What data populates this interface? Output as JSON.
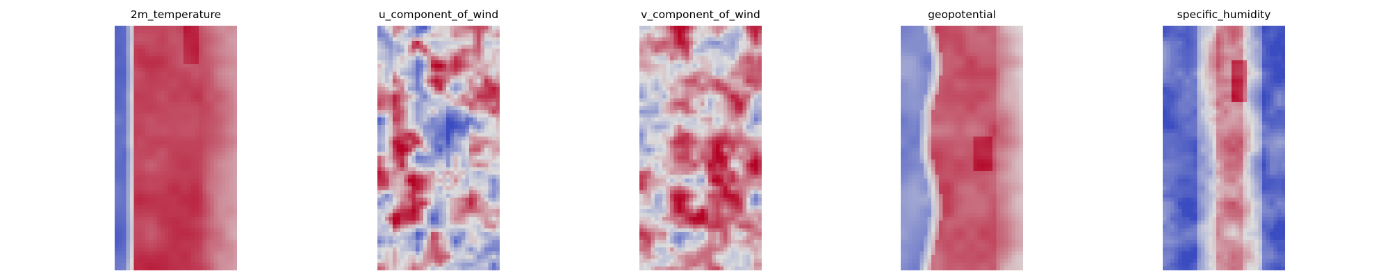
{
  "figure": {
    "panels": [
      {
        "title": "2m_temperature"
      },
      {
        "title": "u_component_of_wind"
      },
      {
        "title": "v_component_of_wind"
      },
      {
        "title": "geopotential"
      },
      {
        "title": "specific_humidity"
      }
    ]
  },
  "chart_data": [
    {
      "type": "heatmap",
      "title": "2m_temperature",
      "colormap": "coolwarm",
      "axes": "off",
      "grid": false,
      "colormap_stops": [
        "#3b4cc0",
        "#dddddd",
        "#b40426"
      ],
      "pattern": "cool blue band along the left edge, warm red band through center, lighter toward right edge",
      "value_range": [
        -1,
        1
      ]
    },
    {
      "type": "heatmap",
      "title": "u_component_of_wind",
      "colormap": "coolwarm",
      "axes": "off",
      "grid": false,
      "colormap_stops": [
        "#3b4cc0",
        "#dddddd",
        "#b40426"
      ],
      "pattern": "mixed blue and red patches, red streaks on left and center-top",
      "value_range": [
        -1,
        1
      ]
    },
    {
      "type": "heatmap",
      "title": "v_component_of_wind",
      "colormap": "coolwarm",
      "axes": "off",
      "grid": false,
      "colormap_stops": [
        "#3b4cc0",
        "#dddddd",
        "#b40426"
      ],
      "pattern": "mostly light salmon with scattered blue swirls and a few dark red spots",
      "value_range": [
        -1,
        1
      ]
    },
    {
      "type": "heatmap",
      "title": "geopotential",
      "colormap": "coolwarm",
      "axes": "off",
      "grid": false,
      "colormap_stops": [
        "#3b4cc0",
        "#dddddd",
        "#b40426"
      ],
      "pattern": "blue wavy band on left, broad red band center, light tones on right",
      "value_range": [
        -1,
        1
      ]
    },
    {
      "type": "heatmap",
      "title": "specific_humidity",
      "colormap": "coolwarm",
      "axes": "off",
      "grid": false,
      "colormap_stops": [
        "#3b4cc0",
        "#dddddd",
        "#b40426"
      ],
      "pattern": "deep blue on both sides, warm red plume down the center with a dark red peak near top",
      "value_range": [
        -1,
        1
      ]
    }
  ]
}
